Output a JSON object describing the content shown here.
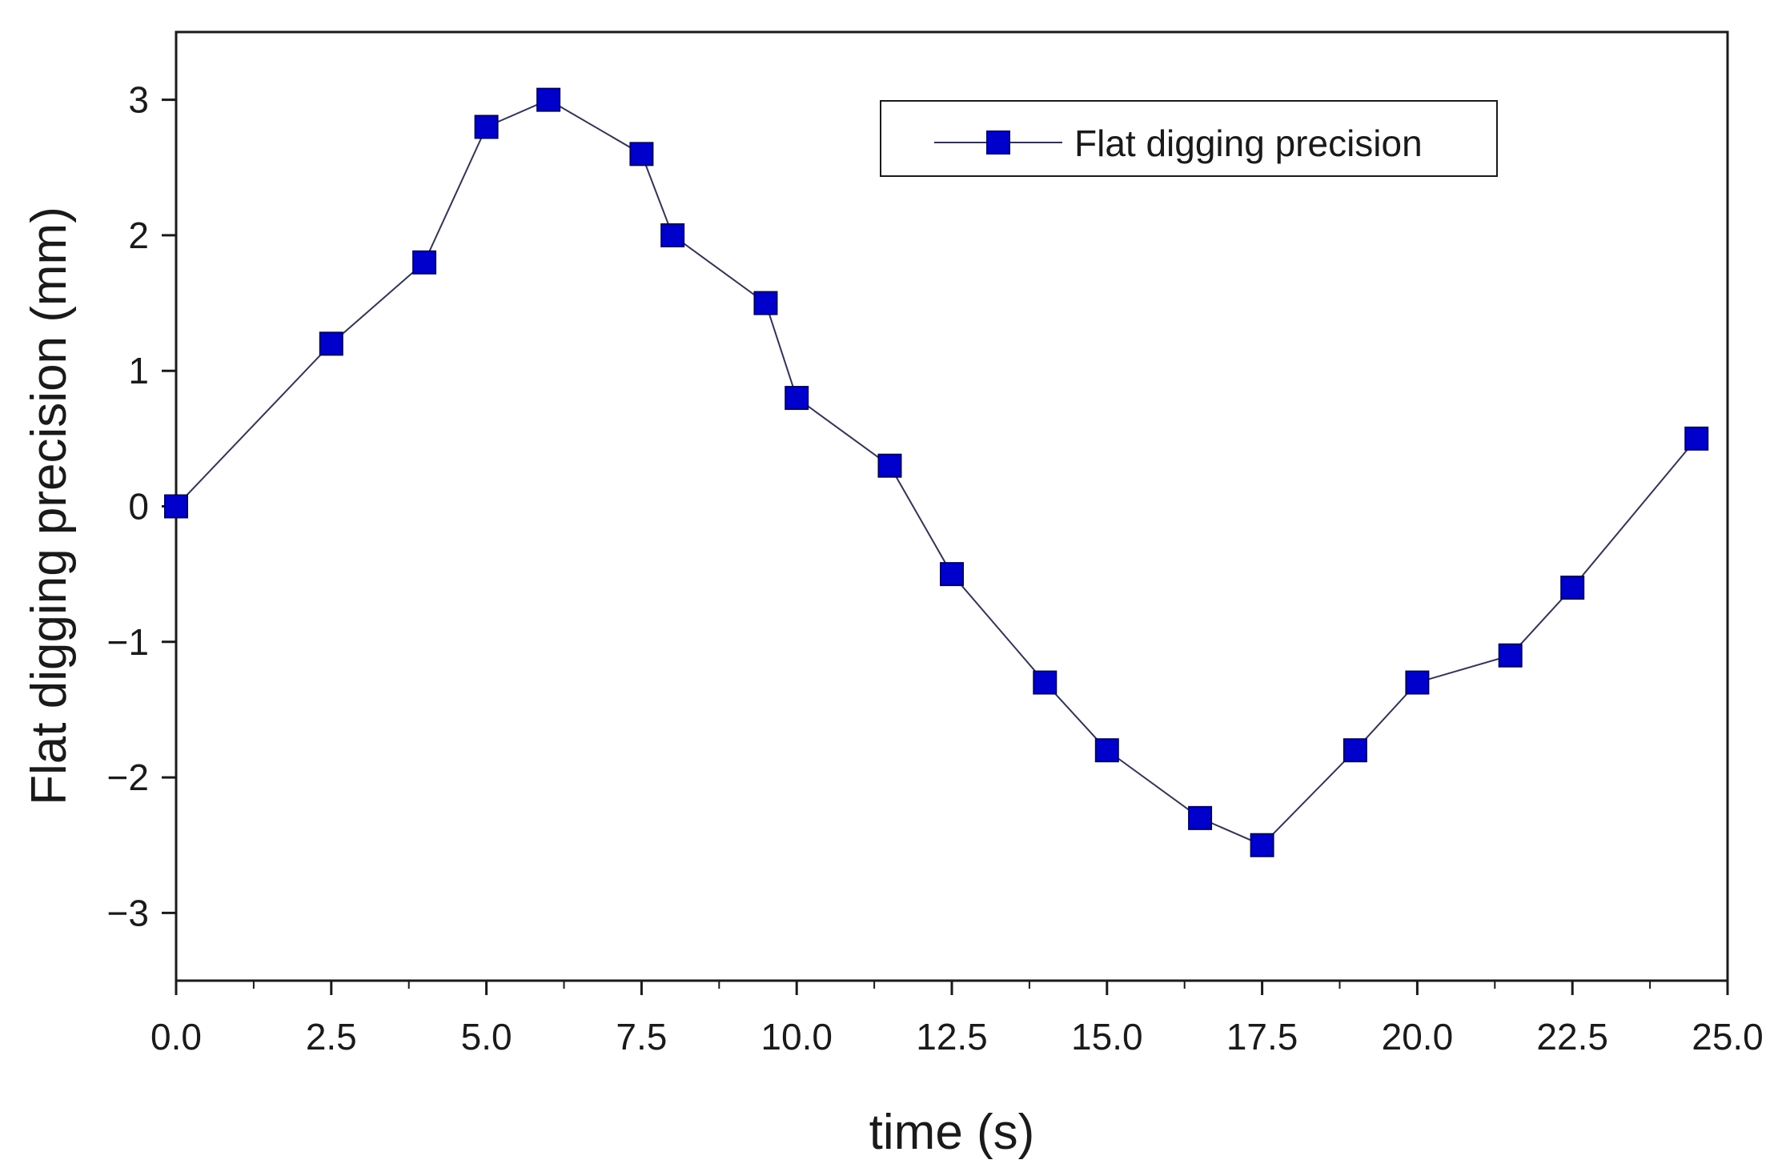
{
  "chart_data": {
    "type": "line",
    "title": "",
    "xlabel": "time (s)",
    "ylabel": "Flat digging precision (mm)",
    "xlim": [
      0,
      25
    ],
    "ylim": [
      -3.5,
      3.5
    ],
    "xticks": [
      0,
      2.5,
      5,
      7.5,
      10,
      12.5,
      15,
      17.5,
      20,
      22.5,
      25
    ],
    "xtick_labels": [
      "0.0",
      "2.5",
      "5.0",
      "7.5",
      "10.0",
      "12.5",
      "15.0",
      "17.5",
      "20.0",
      "22.5",
      "25.0"
    ],
    "yticks": [
      -3,
      -2,
      -1,
      0,
      1,
      2,
      3
    ],
    "ytick_labels": [
      "−3",
      "−2",
      "−1",
      "0",
      "1",
      "2",
      "3"
    ],
    "grid": false,
    "legend_position": "top-right",
    "series": [
      {
        "name": "Flat digging precision",
        "color": "#0000cc",
        "line_color": "#333355",
        "marker": "square",
        "x": [
          0,
          2.5,
          4,
          5,
          6,
          7.5,
          8,
          9.5,
          10,
          11.5,
          12.5,
          14,
          15,
          16.5,
          17.5,
          19,
          20,
          21.5,
          22.5,
          24.5
        ],
        "y": [
          0,
          1.2,
          1.8,
          2.8,
          3.0,
          2.6,
          2.0,
          1.5,
          0.8,
          0.3,
          -0.5,
          -1.3,
          -1.8,
          -2.3,
          -2.5,
          -1.8,
          -1.3,
          -1.1,
          -0.6,
          0.5
        ]
      }
    ]
  }
}
